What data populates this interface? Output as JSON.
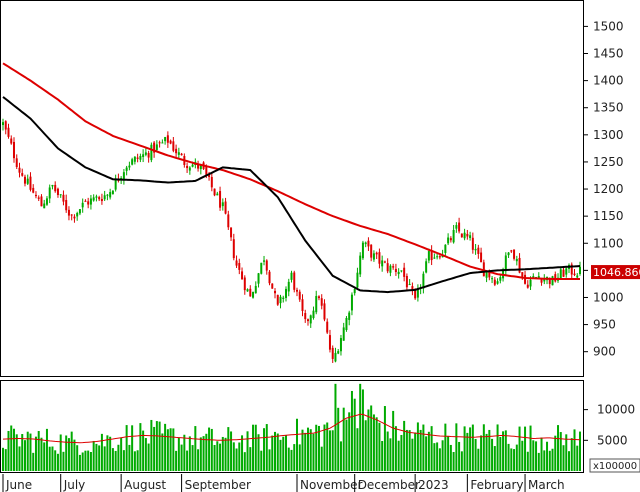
{
  "chart_data": {
    "type": "candlestick",
    "price_panel": {
      "y_ticks": [
        900,
        950,
        1000,
        1050,
        1100,
        1150,
        1200,
        1250,
        1300,
        1350,
        1400,
        1450,
        1500
      ],
      "ylim": [
        857,
        1545
      ],
      "last_price_label": "1046.860",
      "colors": {
        "up": "#00aa00",
        "down": "#dd0000",
        "ma_slow": "#dd0000",
        "ma_fast": "#000000",
        "label_bg": "#cc0000"
      },
      "ma_fast": {
        "x": [
          0,
          10,
          20,
          30,
          40,
          50,
          60,
          70,
          80,
          90,
          100,
          110,
          120,
          130,
          140,
          150,
          160,
          170,
          180,
          190,
          200,
          210
        ],
        "values": [
          1370,
          1330,
          1275,
          1240,
          1218,
          1216,
          1212,
          1215,
          1240,
          1235,
          1185,
          1105,
          1040,
          1013,
          1010,
          1014,
          1030,
          1045,
          1050,
          1052,
          1055,
          1058
        ]
      },
      "ma_slow": {
        "x": [
          0,
          10,
          20,
          30,
          40,
          50,
          60,
          70,
          80,
          90,
          100,
          110,
          120,
          130,
          140,
          150,
          160,
          170,
          180,
          190,
          200,
          210
        ],
        "values": [
          1432,
          1400,
          1365,
          1325,
          1298,
          1280,
          1262,
          1247,
          1235,
          1218,
          1196,
          1172,
          1150,
          1132,
          1117,
          1098,
          1078,
          1057,
          1043,
          1036,
          1034,
          1034
        ]
      },
      "close_anchors": {
        "x": [
          0,
          6,
          10,
          14,
          18,
          25,
          30,
          38,
          45,
          52,
          60,
          66,
          72,
          80,
          85,
          90,
          95,
          100,
          105,
          110,
          115,
          120,
          125,
          128,
          131,
          135,
          140,
          145,
          150,
          155,
          160,
          165,
          170,
          175,
          180,
          185,
          190,
          195,
          200,
          205,
          210
        ],
        "values": [
          1320,
          1235,
          1200,
          1170,
          1205,
          1150,
          1175,
          1190,
          1245,
          1265,
          1290,
          1250,
          1240,
          1165,
          1060,
          1000,
          1075,
          980,
          1040,
          950,
          1005,
          880,
          960,
          1025,
          1100,
          1075,
          1055,
          1050,
          990,
          1075,
          1085,
          1125,
          1105,
          1050,
          1030,
          1095,
          1025,
          1040,
          1030,
          1050,
          1047
        ]
      }
    },
    "volume_panel": {
      "y_ticks": [
        5000,
        10000
      ],
      "ylim": [
        0,
        14500
      ],
      "unit_label": "x100000",
      "ma_values": [
        5200,
        5300,
        5200,
        4900,
        4700,
        4600,
        4800,
        5200,
        5600,
        5800,
        5700,
        5500,
        5300,
        5100,
        5000,
        5100,
        5300,
        5500,
        5800,
        6000,
        6200,
        7000,
        8600,
        9300,
        8300,
        7000,
        6300,
        6000,
        5700,
        5600,
        5500,
        5600,
        5800,
        5600,
        5300,
        5400,
        5200,
        5100
      ]
    },
    "x_axis": {
      "n_sessions": 211,
      "labels": [
        {
          "label": "June",
          "idx": 0
        },
        {
          "label": "July",
          "idx": 21
        },
        {
          "label": "August",
          "idx": 43
        },
        {
          "label": "September",
          "idx": 65
        },
        {
          "label": "November",
          "idx": 107
        },
        {
          "label": "December",
          "idx": 128
        },
        {
          "label": "2023",
          "idx": 150
        },
        {
          "label": "February",
          "idx": 169
        },
        {
          "label": "March",
          "idx": 190
        }
      ]
    }
  }
}
